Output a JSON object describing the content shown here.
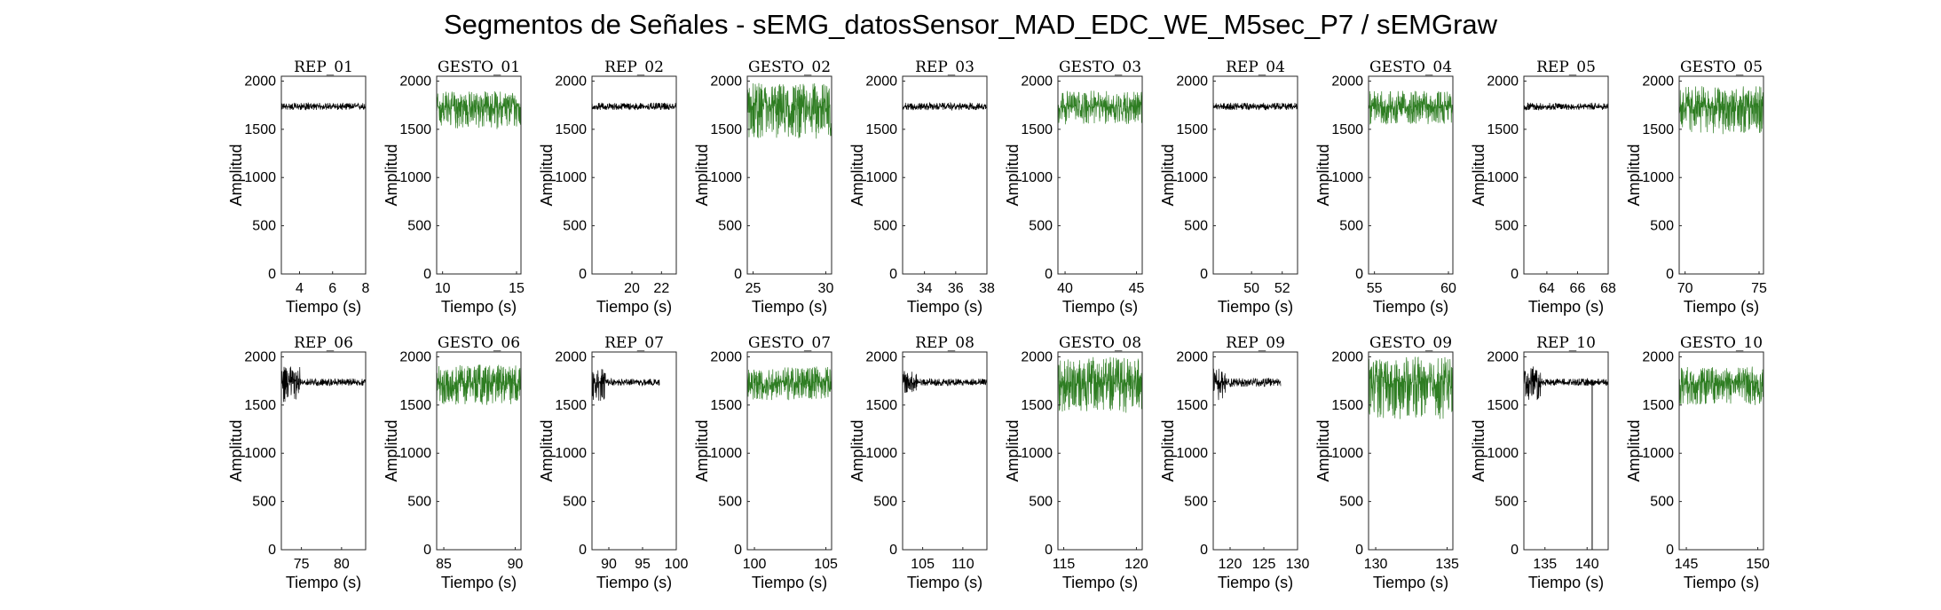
{
  "figure": {
    "title": "Segmentos de Señales - sEMG_datosSensor_MAD_EDC_WE_M5sec_P7 / sEMGraw"
  },
  "colors": {
    "rep": "#000000",
    "gesto": "#2e7d22"
  },
  "chart_data": [
    {
      "type": "line",
      "title": "REP_01",
      "xlabel": "Tiempo (s)",
      "ylabel": "Amplitud",
      "xlim": [
        2.9,
        8.0
      ],
      "ylim": [
        0,
        2050
      ],
      "xticks": [
        "4",
        "6",
        "8"
      ],
      "xtick_values": [
        4,
        6,
        8
      ],
      "yticks": [
        "0",
        "500",
        "1000",
        "1500",
        "2000"
      ],
      "ytick_values": [
        0,
        500,
        1000,
        1500,
        2000
      ],
      "kind": "rep",
      "signal_x_range": [
        2.9,
        8.0
      ],
      "baseline": 1735,
      "amplitude_band": [
        1700,
        1775
      ],
      "color": "#000000"
    },
    {
      "type": "line",
      "title": "GESTO_01",
      "xlabel": "Tiempo (s)",
      "ylabel": "Amplitud",
      "xlim": [
        9.6,
        15.3
      ],
      "ylim": [
        0,
        2050
      ],
      "xticks": [
        "10",
        "15"
      ],
      "xtick_values": [
        10,
        15
      ],
      "yticks": [
        "0",
        "500",
        "1000",
        "1500",
        "2000"
      ],
      "ytick_values": [
        0,
        500,
        1000,
        1500,
        2000
      ],
      "kind": "gesto",
      "signal_x_range": [
        9.6,
        15.3
      ],
      "baseline": 1735,
      "amplitude_band": [
        1500,
        1900
      ],
      "color": "#2e7d22"
    },
    {
      "type": "line",
      "title": "REP_02",
      "xlabel": "Tiempo (s)",
      "ylabel": "Amplitud",
      "xlim": [
        17.3,
        23.0
      ],
      "ylim": [
        0,
        2050
      ],
      "xticks": [
        "20",
        "22"
      ],
      "xtick_values": [
        20,
        22
      ],
      "yticks": [
        "0",
        "500",
        "1000",
        "1500",
        "2000"
      ],
      "ytick_values": [
        0,
        500,
        1000,
        1500,
        2000
      ],
      "kind": "rep",
      "signal_x_range": [
        17.3,
        23.0
      ],
      "baseline": 1735,
      "amplitude_band": [
        1700,
        1775
      ],
      "color": "#000000"
    },
    {
      "type": "line",
      "title": "GESTO_02",
      "xlabel": "Tiempo (s)",
      "ylabel": "Amplitud",
      "xlim": [
        24.6,
        30.4
      ],
      "ylim": [
        0,
        2050
      ],
      "xticks": [
        "25",
        "30"
      ],
      "xtick_values": [
        25,
        30
      ],
      "yticks": [
        "0",
        "500",
        "1000",
        "1500",
        "2000"
      ],
      "ytick_values": [
        0,
        500,
        1000,
        1500,
        2000
      ],
      "kind": "gesto",
      "signal_x_range": [
        24.6,
        30.4
      ],
      "baseline": 1735,
      "amplitude_band": [
        1400,
        1980
      ],
      "color": "#2e7d22"
    },
    {
      "type": "line",
      "title": "REP_03",
      "xlabel": "Tiempo (s)",
      "ylabel": "Amplitud",
      "xlim": [
        32.6,
        38.0
      ],
      "ylim": [
        0,
        2050
      ],
      "xticks": [
        "34",
        "36",
        "38"
      ],
      "xtick_values": [
        34,
        36,
        38
      ],
      "yticks": [
        "0",
        "500",
        "1000",
        "1500",
        "2000"
      ],
      "ytick_values": [
        0,
        500,
        1000,
        1500,
        2000
      ],
      "kind": "rep",
      "signal_x_range": [
        32.6,
        38.0
      ],
      "baseline": 1735,
      "amplitude_band": [
        1700,
        1775
      ],
      "color": "#000000"
    },
    {
      "type": "line",
      "title": "GESTO_03",
      "xlabel": "Tiempo (s)",
      "ylabel": "Amplitud",
      "xlim": [
        39.5,
        45.4
      ],
      "ylim": [
        0,
        2050
      ],
      "xticks": [
        "40",
        "45"
      ],
      "xtick_values": [
        40,
        45
      ],
      "yticks": [
        "0",
        "500",
        "1000",
        "1500",
        "2000"
      ],
      "ytick_values": [
        0,
        500,
        1000,
        1500,
        2000
      ],
      "kind": "gesto",
      "signal_x_range": [
        39.5,
        45.4
      ],
      "baseline": 1735,
      "amplitude_band": [
        1550,
        1900
      ],
      "color": "#2e7d22"
    },
    {
      "type": "line",
      "title": "REP_04",
      "xlabel": "Tiempo (s)",
      "ylabel": "Amplitud",
      "xlim": [
        47.5,
        53.0
      ],
      "ylim": [
        0,
        2050
      ],
      "xticks": [
        "50",
        "52"
      ],
      "xtick_values": [
        50,
        52
      ],
      "yticks": [
        "0",
        "500",
        "1000",
        "1500",
        "2000"
      ],
      "ytick_values": [
        0,
        500,
        1000,
        1500,
        2000
      ],
      "kind": "rep",
      "signal_x_range": [
        47.5,
        53.0
      ],
      "baseline": 1735,
      "amplitude_band": [
        1700,
        1775
      ],
      "color": "#000000"
    },
    {
      "type": "line",
      "title": "GESTO_04",
      "xlabel": "Tiempo (s)",
      "ylabel": "Amplitud",
      "xlim": [
        54.6,
        60.3
      ],
      "ylim": [
        0,
        2050
      ],
      "xticks": [
        "55",
        "60"
      ],
      "xtick_values": [
        55,
        60
      ],
      "yticks": [
        "0",
        "500",
        "1000",
        "1500",
        "2000"
      ],
      "ytick_values": [
        0,
        500,
        1000,
        1500,
        2000
      ],
      "kind": "gesto",
      "signal_x_range": [
        54.6,
        60.3
      ],
      "baseline": 1735,
      "amplitude_band": [
        1550,
        1900
      ],
      "color": "#2e7d22"
    },
    {
      "type": "line",
      "title": "REP_05",
      "xlabel": "Tiempo (s)",
      "ylabel": "Amplitud",
      "xlim": [
        62.5,
        68.0
      ],
      "ylim": [
        0,
        2050
      ],
      "xticks": [
        "64",
        "66",
        "68"
      ],
      "xtick_values": [
        64,
        66,
        68
      ],
      "yticks": [
        "0",
        "500",
        "1000",
        "1500",
        "2000"
      ],
      "ytick_values": [
        0,
        500,
        1000,
        1500,
        2000
      ],
      "kind": "rep",
      "signal_x_range": [
        62.5,
        68.0
      ],
      "baseline": 1735,
      "amplitude_band": [
        1700,
        1775
      ],
      "color": "#000000"
    },
    {
      "type": "line",
      "title": "GESTO_05",
      "xlabel": "Tiempo (s)",
      "ylabel": "Amplitud",
      "xlim": [
        69.6,
        75.3
      ],
      "ylim": [
        0,
        2050
      ],
      "xticks": [
        "70",
        "75"
      ],
      "xtick_values": [
        70,
        75
      ],
      "yticks": [
        "0",
        "500",
        "1000",
        "1500",
        "2000"
      ],
      "ytick_values": [
        0,
        500,
        1000,
        1500,
        2000
      ],
      "kind": "gesto",
      "signal_x_range": [
        69.6,
        75.3
      ],
      "baseline": 1735,
      "amplitude_band": [
        1450,
        1950
      ],
      "color": "#2e7d22"
    },
    {
      "type": "line",
      "title": "REP_06",
      "xlabel": "Tiempo (s)",
      "ylabel": "Amplitud",
      "xlim": [
        72.5,
        83.0
      ],
      "ylim": [
        0,
        2050
      ],
      "xticks": [
        "75",
        "80"
      ],
      "xtick_values": [
        75,
        80
      ],
      "yticks": [
        "0",
        "500",
        "1000",
        "1500",
        "2000"
      ],
      "ytick_values": [
        0,
        500,
        1000,
        1500,
        2000
      ],
      "kind": "rep",
      "signal_x_range": [
        72.5,
        83.0
      ],
      "baseline": 1735,
      "amplitude_band": [
        1700,
        1775
      ],
      "burst_x_range": [
        72.5,
        74.8
      ],
      "burst_band": [
        1520,
        1900
      ],
      "color": "#000000"
    },
    {
      "type": "line",
      "title": "GESTO_06",
      "xlabel": "Tiempo (s)",
      "ylabel": "Amplitud",
      "xlim": [
        84.5,
        90.4
      ],
      "ylim": [
        0,
        2050
      ],
      "xticks": [
        "85",
        "90"
      ],
      "xtick_values": [
        85,
        90
      ],
      "yticks": [
        "0",
        "500",
        "1000",
        "1500",
        "2000"
      ],
      "ytick_values": [
        0,
        500,
        1000,
        1500,
        2000
      ],
      "kind": "gesto",
      "signal_x_range": [
        84.5,
        90.4
      ],
      "baseline": 1735,
      "amplitude_band": [
        1500,
        1920
      ],
      "color": "#2e7d22"
    },
    {
      "type": "line",
      "title": "REP_07",
      "xlabel": "Tiempo (s)",
      "ylabel": "Amplitud",
      "xlim": [
        87.5,
        100.0
      ],
      "ylim": [
        0,
        2050
      ],
      "xticks": [
        "90",
        "95",
        "100"
      ],
      "xtick_values": [
        90,
        95,
        100
      ],
      "yticks": [
        "0",
        "500",
        "1000",
        "1500",
        "2000"
      ],
      "ytick_values": [
        0,
        500,
        1000,
        1500,
        2000
      ],
      "kind": "rep",
      "signal_x_range": [
        87.5,
        97.5
      ],
      "baseline": 1735,
      "amplitude_band": [
        1700,
        1775
      ],
      "burst_x_range": [
        87.5,
        89.5
      ],
      "burst_band": [
        1540,
        1880
      ],
      "color": "#000000"
    },
    {
      "type": "line",
      "title": "GESTO_07",
      "xlabel": "Tiempo (s)",
      "ylabel": "Amplitud",
      "xlim": [
        99.5,
        105.4
      ],
      "ylim": [
        0,
        2050
      ],
      "xticks": [
        "100",
        "105"
      ],
      "xtick_values": [
        100,
        105
      ],
      "yticks": [
        "0",
        "500",
        "1000",
        "1500",
        "2000"
      ],
      "ytick_values": [
        0,
        500,
        1000,
        1500,
        2000
      ],
      "kind": "gesto",
      "signal_x_range": [
        99.5,
        105.4
      ],
      "baseline": 1735,
      "amplitude_band": [
        1550,
        1900
      ],
      "color": "#2e7d22"
    },
    {
      "type": "line",
      "title": "REP_08",
      "xlabel": "Tiempo (s)",
      "ylabel": "Amplitud",
      "xlim": [
        102.5,
        113.0
      ],
      "ylim": [
        0,
        2050
      ],
      "xticks": [
        "105",
        "110"
      ],
      "xtick_values": [
        105,
        110
      ],
      "yticks": [
        "0",
        "500",
        "1000",
        "1500",
        "2000"
      ],
      "ytick_values": [
        0,
        500,
        1000,
        1500,
        2000
      ],
      "kind": "rep",
      "signal_x_range": [
        102.5,
        113.0
      ],
      "baseline": 1735,
      "amplitude_band": [
        1700,
        1775
      ],
      "burst_x_range": [
        102.5,
        104.3
      ],
      "burst_band": [
        1620,
        1860
      ],
      "color": "#000000"
    },
    {
      "type": "line",
      "title": "GESTO_08",
      "xlabel": "Tiempo (s)",
      "ylabel": "Amplitud",
      "xlim": [
        114.6,
        120.4
      ],
      "ylim": [
        0,
        2050
      ],
      "xticks": [
        "115",
        "120"
      ],
      "xtick_values": [
        115,
        120
      ],
      "yticks": [
        "0",
        "500",
        "1000",
        "1500",
        "2000"
      ],
      "ytick_values": [
        0,
        500,
        1000,
        1500,
        2000
      ],
      "kind": "gesto",
      "signal_x_range": [
        114.6,
        120.4
      ],
      "baseline": 1735,
      "amplitude_band": [
        1420,
        2000
      ],
      "color": "#2e7d22"
    },
    {
      "type": "line",
      "title": "REP_09",
      "xlabel": "Tiempo (s)",
      "ylabel": "Amplitud",
      "xlim": [
        117.5,
        130.0
      ],
      "ylim": [
        0,
        2050
      ],
      "xticks": [
        "120",
        "125",
        "130"
      ],
      "xtick_values": [
        120,
        125,
        130
      ],
      "yticks": [
        "0",
        "500",
        "1000",
        "1500",
        "2000"
      ],
      "ytick_values": [
        0,
        500,
        1000,
        1500,
        2000
      ],
      "kind": "rep",
      "signal_x_range": [
        117.5,
        127.5
      ],
      "baseline": 1735,
      "amplitude_band": [
        1690,
        1780
      ],
      "burst_x_range": [
        117.5,
        119.3
      ],
      "burst_band": [
        1550,
        1880
      ],
      "color": "#000000"
    },
    {
      "type": "line",
      "title": "GESTO_09",
      "xlabel": "Tiempo (s)",
      "ylabel": "Amplitud",
      "xlim": [
        129.5,
        135.4
      ],
      "ylim": [
        0,
        2050
      ],
      "xticks": [
        "130",
        "135"
      ],
      "xtick_values": [
        130,
        135
      ],
      "yticks": [
        "0",
        "500",
        "1000",
        "1500",
        "2000"
      ],
      "ytick_values": [
        0,
        500,
        1000,
        1500,
        2000
      ],
      "kind": "gesto",
      "signal_x_range": [
        129.5,
        135.4
      ],
      "baseline": 1735,
      "amplitude_band": [
        1350,
        2000
      ],
      "color": "#2e7d22"
    },
    {
      "type": "line",
      "title": "REP_10",
      "xlabel": "Tiempo (s)",
      "ylabel": "Amplitud",
      "xlim": [
        132.5,
        142.5
      ],
      "ylim": [
        0,
        2050
      ],
      "xticks": [
        "135",
        "140"
      ],
      "xtick_values": [
        135,
        140
      ],
      "yticks": [
        "0",
        "500",
        "1000",
        "1500",
        "2000"
      ],
      "ytick_values": [
        0,
        500,
        1000,
        1500,
        2000
      ],
      "kind": "rep",
      "signal_x_range": [
        132.5,
        142.5
      ],
      "baseline": 1735,
      "amplitude_band": [
        1700,
        1775
      ],
      "burst_x_range": [
        132.5,
        134.5
      ],
      "burst_band": [
        1550,
        1900
      ],
      "spike_x": 140.6,
      "spike_min": 0,
      "color": "#000000"
    },
    {
      "type": "line",
      "title": "GESTO_10",
      "xlabel": "Tiempo (s)",
      "ylabel": "Amplitud",
      "xlim": [
        144.5,
        150.4
      ],
      "ylim": [
        0,
        2050
      ],
      "xticks": [
        "145",
        "150"
      ],
      "xtick_values": [
        145,
        150
      ],
      "yticks": [
        "0",
        "500",
        "1000",
        "1500",
        "2000"
      ],
      "ytick_values": [
        0,
        500,
        1000,
        1500,
        2000
      ],
      "kind": "gesto",
      "signal_x_range": [
        144.5,
        150.4
      ],
      "baseline": 1735,
      "amplitude_band": [
        1500,
        1900
      ],
      "color": "#2e7d22"
    }
  ]
}
